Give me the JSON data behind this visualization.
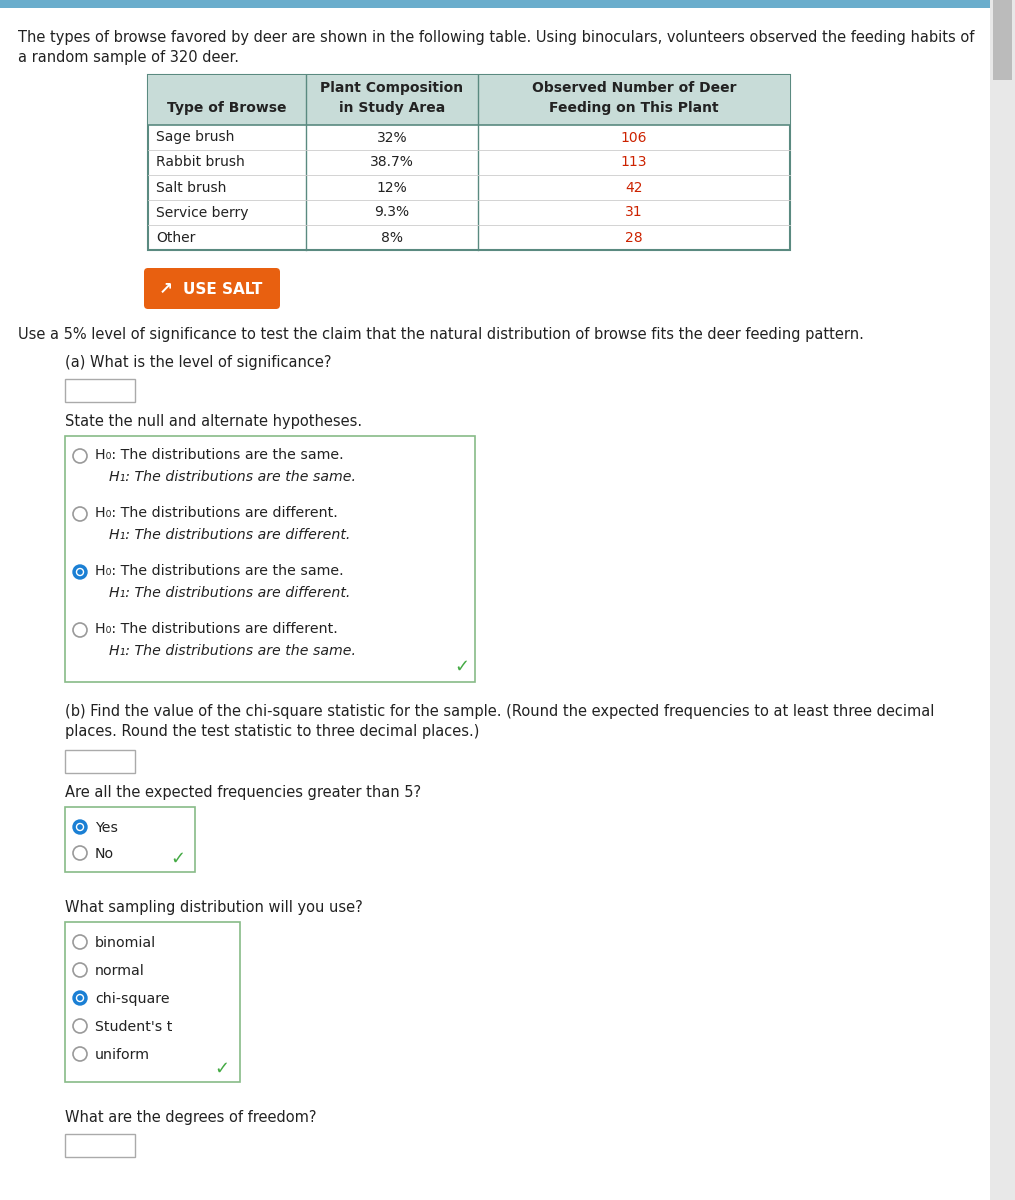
{
  "bg_color": "#f0f0f0",
  "content_bg": "#ffffff",
  "intro_text_line1": "The types of browse favored by deer are shown in the following table. Using binoculars, volunteers observed the feeding habits of",
  "intro_text_line2": "a random sample of 320 deer.",
  "table": {
    "header_bg": "#c8dcd8",
    "border_color": "#5a8a80",
    "col_headers_line1": [
      "",
      "Plant Composition",
      "Observed Number of Deer"
    ],
    "col_headers_line2": [
      "Type of Browse",
      "in Study Area",
      "Feeding on This Plant"
    ],
    "rows": [
      [
        "Sage brush",
        "32%",
        "106"
      ],
      [
        "Rabbit brush",
        "38.7%",
        "113"
      ],
      [
        "Salt brush",
        "12%",
        "42"
      ],
      [
        "Service berry",
        "9.3%",
        "31"
      ],
      [
        "Other",
        "8%",
        "28"
      ]
    ],
    "obs_color": "#cc2200"
  },
  "use_salt_bg": "#e86010",
  "use_salt_text": "USE SALT",
  "significance_text": "Use a 5% level of significance to test the claim that the natural distribution of browse fits the deer feeding pattern.",
  "part_a_label": "(a) What is the level of significance?",
  "state_hyp_text": "State the null and alternate hypotheses.",
  "hypotheses": [
    {
      "h0": "H₀: The distributions are the same.",
      "h1": "H₁: The distributions are the same.",
      "selected": false
    },
    {
      "h0": "H₀: The distributions are different.",
      "h1": "H₁: The distributions are different.",
      "selected": false
    },
    {
      "h0": "H₀: The distributions are the same.",
      "h1": "H₁: The distributions are different.",
      "selected": true
    },
    {
      "h0": "H₀: The distributions are different.",
      "h1": "H₁: The distributions are the same.",
      "selected": false
    }
  ],
  "hyp_box_border": "#88bb88",
  "checkmark_color": "#44aa44",
  "part_b_label_line1": "(b) Find the value of the chi-square statistic for the sample. (Round the expected frequencies to at least three decimal",
  "part_b_label_line2": "places. Round the test statistic to three decimal places.)",
  "freq_question": "Are all the expected frequencies greater than 5?",
  "freq_options": [
    "Yes",
    "No"
  ],
  "freq_selected": 0,
  "dist_question": "What sampling distribution will you use?",
  "dist_options": [
    "binomial",
    "normal",
    "chi-square",
    "Student's t",
    "uniform"
  ],
  "dist_selected": 2,
  "dof_question": "What are the degrees of freedom?",
  "radio_selected_color": "#1a7fd4",
  "input_box_border": "#aaaaaa",
  "top_bar_color": "#6aadcc",
  "scrollbar_color": "#cccccc"
}
